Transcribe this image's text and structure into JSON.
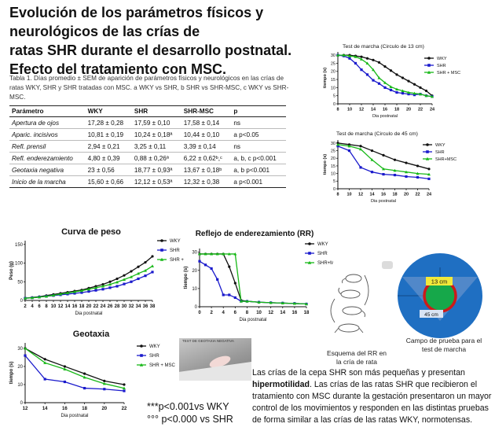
{
  "header": {
    "title_line1": "Evolución de los parámetros físicos y neurológicos de las crías de",
    "title_line2": "ratas SHR durante el desarrollo postnatal.",
    "title_line3": "Efecto del tratamiento con MSC."
  },
  "table1": {
    "caption": "Tabla 1. Días promedio ± SEM de aparición de parámetros físicos y neurológicos en las crías de ratas WKY, SHR y SHR tratadas con MSC. a WKY vs SHR, b SHR vs SHR-MSC, c WKY vs SHR-MSC.",
    "headers": [
      "Parámetro",
      "WKY",
      "SHR",
      "SHR-MSC",
      "p"
    ],
    "rows": [
      [
        "Apertura de ojos",
        "17,28 ± 0,28",
        "17,59 ± 0,10",
        "17,58 ± 0,14",
        "ns"
      ],
      [
        "Aparic. incisivos",
        "10,81 ± 0,19",
        "10,24 ± 0,18ª",
        "10,44 ± 0,10",
        "a p<0.05"
      ],
      [
        "Refl. prensil",
        "2,94 ± 0,21",
        "3,25 ± 0,11",
        "3,39 ± 0,14",
        "ns"
      ],
      [
        "Refl. enderezamiento",
        "4,80 ± 0,39",
        "0,88 ± 0,26ª",
        "6,22 ± 0,62ᵇ,ᶜ",
        "a, b, c p<0.001"
      ],
      [
        "Geotaxia negativa",
        "23 ± 0,56",
        "18,77 ± 0,93ª",
        "13,67 ± 0,18ᵇ",
        "a, b p<0.001"
      ],
      [
        "Inicio de la marcha",
        "15,60 ± 0,66",
        "12,12 ± 0,53ª",
        "12,32 ± 0,38",
        "a p<0.001"
      ]
    ]
  },
  "chart_data": [
    {
      "type": "line",
      "title": "Test de marcha (Circulo de 13 cm)",
      "xlabel": "Dia postnatal",
      "ylabel": "tiempo (s)",
      "x": [
        8,
        9,
        10,
        11,
        12,
        13,
        14,
        15,
        16,
        17,
        18,
        19,
        20,
        21,
        22,
        23,
        24
      ],
      "xticks": [
        8,
        10,
        12,
        14,
        16,
        18,
        20,
        22,
        24
      ],
      "yticks": [
        0,
        5,
        10,
        15,
        20,
        25,
        30
      ],
      "ylim": [
        0,
        32
      ],
      "series": [
        {
          "name": "WKY",
          "color": "#111111",
          "marker": "circle",
          "values": [
            30,
            30,
            30,
            29.5,
            29,
            28,
            27,
            25.5,
            23,
            20.5,
            18,
            16,
            14,
            12,
            10,
            8,
            5
          ]
        },
        {
          "name": "SHR",
          "color": "#1a1acc",
          "marker": "square",
          "values": [
            30,
            29.5,
            28,
            25,
            21,
            18,
            14.5,
            12.5,
            10,
            8.5,
            7,
            6.5,
            6,
            5.5,
            6,
            5,
            4.5
          ]
        },
        {
          "name": "SHR + MSC",
          "color": "#18b818",
          "marker": "triangle",
          "values": [
            30,
            30,
            29.5,
            29,
            27.5,
            25,
            21,
            16,
            13,
            10.5,
            9,
            8,
            7,
            6.5,
            6,
            5,
            4.5
          ]
        }
      ]
    },
    {
      "type": "line",
      "title": "Test de marcha (Circulo de 45 cm)",
      "xlabel": "Dia postnatal",
      "ylabel": "tiempo (s)",
      "x": [
        8,
        10,
        12,
        14,
        16,
        18,
        20,
        22,
        24
      ],
      "xticks": [
        8,
        10,
        12,
        14,
        16,
        18,
        20,
        22,
        24
      ],
      "yticks": [
        0,
        5,
        10,
        15,
        20,
        25,
        30
      ],
      "ylim": [
        0,
        32
      ],
      "series": [
        {
          "name": "WKY",
          "color": "#111111",
          "marker": "circle",
          "values": [
            30,
            29,
            28,
            25,
            22,
            19,
            17,
            15,
            13
          ]
        },
        {
          "name": "SHR",
          "color": "#1a1acc",
          "marker": "square",
          "values": [
            28,
            25,
            14,
            11,
            9.5,
            9,
            8,
            7.5,
            6.5
          ]
        },
        {
          "name": "SHR+MSC",
          "color": "#18b818",
          "marker": "triangle",
          "values": [
            29,
            28,
            26,
            19,
            13,
            12,
            11,
            10,
            9.5
          ]
        }
      ]
    },
    {
      "type": "line",
      "title": "Curva de peso",
      "xlabel": "Dia postnatal",
      "ylabel": "Peso (g)",
      "x": [
        2,
        4,
        6,
        8,
        10,
        12,
        14,
        16,
        18,
        20,
        22,
        24,
        26,
        28,
        30,
        32,
        34,
        36,
        38
      ],
      "xticks": [
        2,
        4,
        6,
        8,
        10,
        12,
        14,
        16,
        18,
        20,
        22,
        24,
        26,
        28,
        30,
        32,
        34,
        36,
        38
      ],
      "yticks": [
        0,
        50,
        100,
        150
      ],
      "ylim": [
        0,
        160
      ],
      "series": [
        {
          "name": "WKY",
          "color": "#111111",
          "marker": "circle",
          "values": [
            6,
            8,
            10,
            13,
            16,
            19,
            22,
            25,
            28,
            33,
            38,
            43,
            50,
            58,
            67,
            78,
            90,
            102,
            118
          ]
        },
        {
          "name": "SHR",
          "color": "#1a1acc",
          "marker": "square",
          "values": [
            6,
            7,
            9,
            11,
            13,
            15,
            17,
            19,
            21,
            24,
            27,
            30,
            34,
            38,
            44,
            50,
            58,
            66,
            76
          ]
        },
        {
          "name": "SHR +",
          "color": "#18b818",
          "marker": "triangle",
          "values": [
            6,
            7,
            9,
            11,
            14,
            17,
            20,
            23,
            26,
            30,
            34,
            38,
            43,
            49,
            56,
            63,
            72,
            80,
            92
          ]
        }
      ]
    },
    {
      "type": "line",
      "title": "Reflejo de enderezamiento (RR)",
      "xlabel": "Dia postnatal",
      "ylabel": "tiempo (s)",
      "x": [
        0,
        1,
        2,
        3,
        4,
        5,
        6,
        7,
        8,
        10,
        12,
        14,
        16,
        18
      ],
      "xticks": [
        0,
        2,
        4,
        6,
        8,
        10,
        12,
        14,
        16,
        18
      ],
      "yticks": [
        0,
        10,
        20,
        30
      ],
      "ylim": [
        0,
        32
      ],
      "series": [
        {
          "name": "WKY",
          "color": "#111111",
          "marker": "circle",
          "values": [
            29,
            29,
            29,
            29,
            29,
            22,
            13,
            3.5,
            3,
            2.5,
            2.2,
            2,
            1.8,
            1.5
          ]
        },
        {
          "name": "SHR",
          "color": "#1a1acc",
          "marker": "square",
          "values": [
            25,
            23,
            21,
            15,
            6.5,
            6.5,
            5,
            3,
            3,
            2.5,
            2.2,
            2,
            1.8,
            1.5
          ]
        },
        {
          "name": "SHR+MSC",
          "color": "#18b818",
          "marker": "triangle",
          "values": [
            29,
            29,
            29,
            29,
            29,
            29,
            29,
            3,
            3,
            2.5,
            2.2,
            2,
            1.8,
            1.5
          ]
        }
      ]
    },
    {
      "type": "line",
      "title": "Geotaxia",
      "xlabel": "Dia postnatal",
      "ylabel": "tiempo (s)",
      "x": [
        12,
        14,
        16,
        18,
        20,
        22
      ],
      "xticks": [
        12,
        14,
        16,
        18,
        20,
        22
      ],
      "yticks": [
        0,
        10,
        20,
        30
      ],
      "ylim": [
        0,
        33
      ],
      "series": [
        {
          "name": "WKY",
          "color": "#111111",
          "marker": "circle",
          "values": [
            30,
            24,
            20,
            16,
            12,
            10
          ]
        },
        {
          "name": "SHR",
          "color": "#1a1acc",
          "marker": "square",
          "values": [
            26,
            13,
            11.5,
            8,
            7.5,
            6.5
          ]
        },
        {
          "name": "SHR + MSC",
          "color": "#18b818",
          "marker": "triangle",
          "values": [
            30,
            22,
            18.5,
            14,
            10.5,
            8
          ]
        }
      ]
    }
  ],
  "photos": {
    "geotaxia_label": "TEST DE GEOTAXIA NEGATIVA",
    "rr_caption_line1": "Esquema del RR en",
    "rr_caption_line2": "la cría de rata",
    "arena_caption_line1": "Campo de prueba para el",
    "arena_caption_line2": "test de marcha",
    "arena_inner": "13 cm",
    "arena_outer": "45 cm"
  },
  "notes": {
    "sig_line1": "***p<0.001vs WKY",
    "sig_line2": "°°° p<0.000 vs SHR"
  },
  "conclusion": {
    "part1": "Las crías de  la cepa SHR son más pequeñas y presentan",
    "bold": "hipermotilidad",
    "part2": ". Las crías de las ratas SHR que recibieron el tratamiento con MSC  durante la gestación presentaron un mayor control de los movimientos y responden  en las distintas pruebas de forma similar a las crías de las ratas WKY, normotensas."
  }
}
